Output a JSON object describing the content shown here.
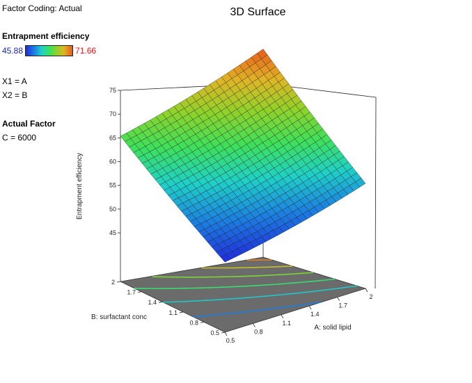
{
  "factor_coding": "Factor Coding: Actual",
  "response": {
    "name": "Entrapment efficiency",
    "min_label": "45.88",
    "max_label": "71.66",
    "min": 45.88,
    "max": 71.66
  },
  "factor_map": {
    "x1": "X1 = A",
    "x2": "X2 = B"
  },
  "actual_factor": {
    "title": "Actual Factor",
    "value": "C = 6000"
  },
  "chart_data": {
    "type": "surface",
    "title": "3D Surface",
    "xlabel": "A: solid lipid",
    "ylabel": "B: surfactant conc",
    "zlabel": "Entrapment efficiency",
    "xlim": [
      0.5,
      2
    ],
    "ylim": [
      0.5,
      2
    ],
    "zlim": [
      42,
      75
    ],
    "x_ticks": [
      "0.5",
      "0.8",
      "1.1",
      "1.4",
      "1.7",
      "2"
    ],
    "y_ticks": [
      "0.5",
      "0.8",
      "1.1",
      "1.4",
      "1.7",
      "2"
    ],
    "z_ticks": [
      "45",
      "50",
      "55",
      "60",
      "65",
      "70",
      "75"
    ],
    "surface_corners": [
      {
        "a": 0.5,
        "b": 0.5,
        "z": 46.0
      },
      {
        "a": 2.0,
        "b": 0.5,
        "z": 52.5
      },
      {
        "a": 0.5,
        "b": 2.0,
        "z": 60.0
      },
      {
        "a": 2.0,
        "b": 2.0,
        "z": 71.7
      }
    ],
    "grid": true,
    "contours_on_floor": true,
    "colormap": [
      "#1f2bdc",
      "#1c7fe0",
      "#1fd0c8",
      "#3ee05a",
      "#8fd22a",
      "#e0b526",
      "#e85a1a"
    ]
  }
}
